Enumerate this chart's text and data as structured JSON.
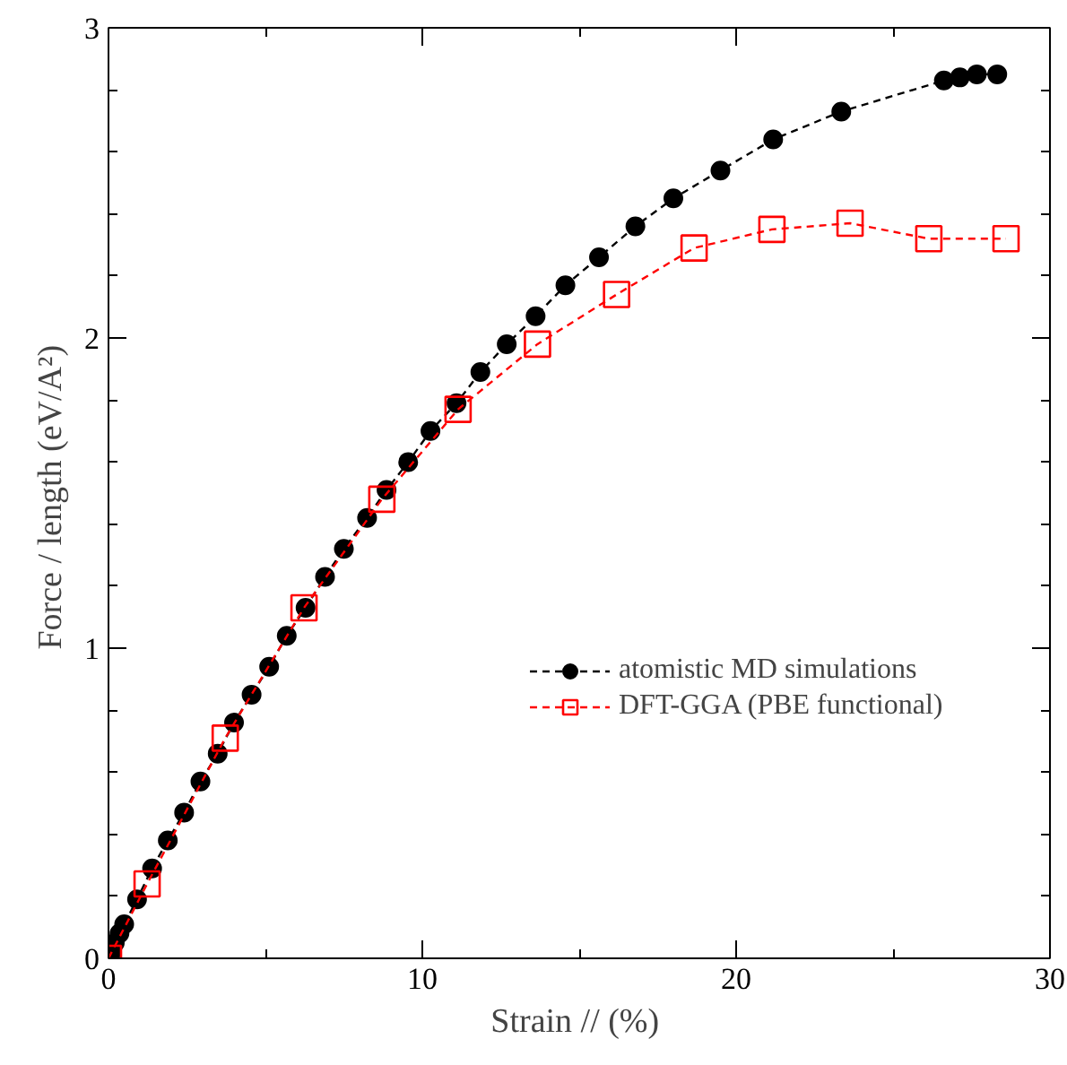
{
  "chart_data": {
    "type": "line",
    "xlabel": "Strain //  (%)",
    "ylabel": "Force / length  (eV/A²)",
    "xlim": [
      0,
      30
    ],
    "ylim": [
      0,
      3
    ],
    "xticks": [
      0,
      {
        "value": 5,
        "label": null
      },
      10,
      {
        "value": 15,
        "label": null
      },
      20,
      {
        "value": 25,
        "label": null
      },
      30
    ],
    "yticks": [
      0,
      {
        "value": 0.2,
        "label": null
      },
      {
        "value": 0.4,
        "label": null
      },
      {
        "value": 0.6,
        "label": null
      },
      {
        "value": 0.8,
        "label": null
      },
      1,
      {
        "value": 1.2,
        "label": null
      },
      {
        "value": 1.4,
        "label": null
      },
      {
        "value": 1.6,
        "label": null
      },
      {
        "value": 1.8,
        "label": null
      },
      2,
      {
        "value": 2.2,
        "label": null
      },
      {
        "value": 2.4,
        "label": null
      },
      {
        "value": 2.6,
        "label": null
      },
      {
        "value": 2.8,
        "label": null
      },
      3
    ],
    "grid": false,
    "legend": "right",
    "line_style": "dashed",
    "series": [
      {
        "name": "atomistic MD simulations",
        "color": "#000000",
        "marker": "circle",
        "x": [
          0,
          0.1,
          0.2,
          0.35,
          0.5,
          0.91,
          1.39,
          1.89,
          2.41,
          2.93,
          3.48,
          4.0,
          4.56,
          5.12,
          5.68,
          6.28,
          6.9,
          7.5,
          8.24,
          8.86,
          9.55,
          10.26,
          11.09,
          11.85,
          12.69,
          13.61,
          14.56,
          15.63,
          16.79,
          18.0,
          19.5,
          21.18,
          23.35,
          26.62,
          27.13,
          27.67,
          28.32
        ],
        "values": [
          0,
          0.02,
          0.05,
          0.08,
          0.11,
          0.19,
          0.29,
          0.38,
          0.47,
          0.57,
          0.66,
          0.76,
          0.85,
          0.94,
          1.04,
          1.13,
          1.23,
          1.32,
          1.42,
          1.51,
          1.6,
          1.7,
          1.79,
          1.89,
          1.98,
          2.07,
          2.17,
          2.26,
          2.36,
          2.45,
          2.54,
          2.64,
          2.73,
          2.83,
          2.84,
          2.85,
          2.85
        ]
      },
      {
        "name": "DFT-GGA (PBE functional)",
        "color": "#ff0000",
        "marker": "square",
        "x": [
          0,
          1.23,
          3.72,
          6.23,
          8.71,
          11.14,
          13.67,
          16.19,
          18.66,
          21.14,
          23.63,
          26.14,
          28.6
        ],
        "values": [
          0,
          0.24,
          0.71,
          1.13,
          1.48,
          1.77,
          1.98,
          2.14,
          2.29,
          2.35,
          2.37,
          2.32,
          2.32
        ]
      }
    ]
  }
}
